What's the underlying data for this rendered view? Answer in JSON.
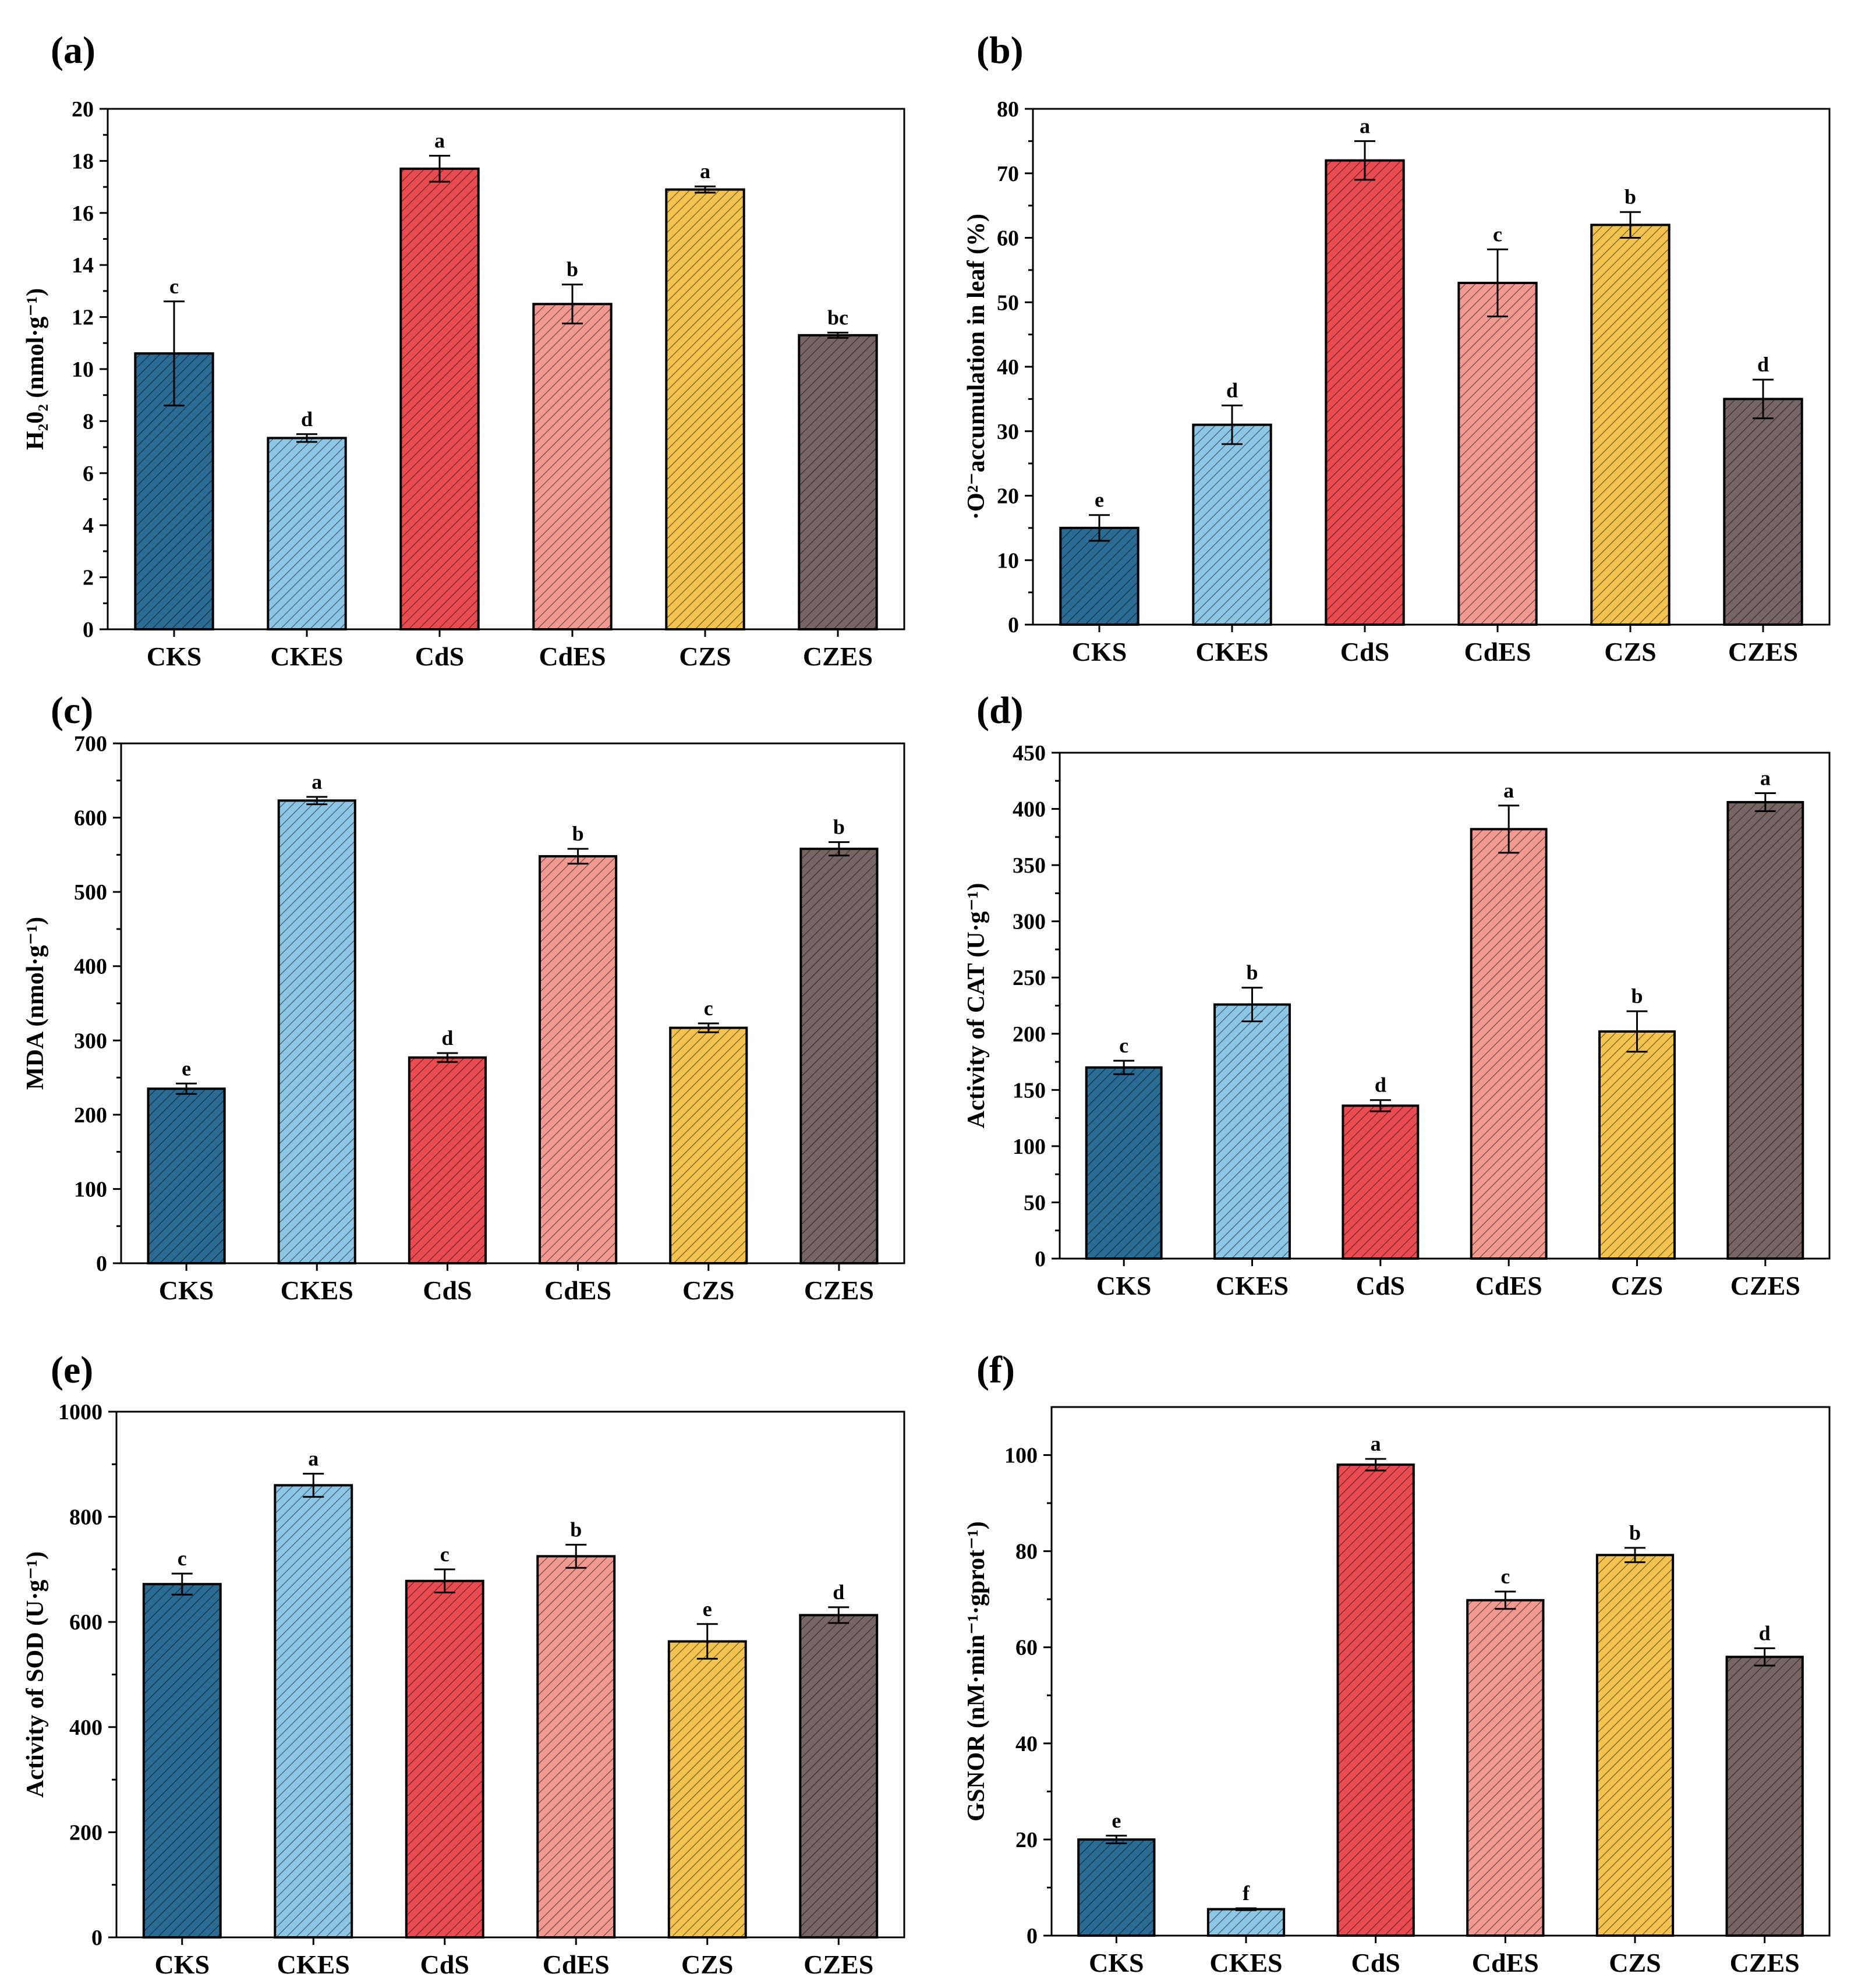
{
  "figure": {
    "series_colors": [
      "#2a6a93",
      "#8ec6e6",
      "#e94b50",
      "#f29a92",
      "#f2c44f",
      "#776464"
    ]
  },
  "chart_data": [
    {
      "type": "bar",
      "panel_label": "(a)",
      "title": "",
      "categories": [
        "CKS",
        "CKES",
        "CdS",
        "CdES",
        "CZS",
        "CZES"
      ],
      "values": [
        10.6,
        7.35,
        17.7,
        12.5,
        16.9,
        11.3
      ],
      "errors": [
        2.0,
        0.15,
        0.5,
        0.75,
        0.12,
        0.1
      ],
      "letters": [
        "c",
        "d",
        "a",
        "b",
        "a",
        "bc"
      ],
      "ylabel": "H₂0₂ (nmol·g⁻¹)",
      "yticks": [
        0,
        2,
        4,
        6,
        8,
        10,
        12,
        14,
        16,
        18,
        20
      ],
      "ylim": [
        0,
        20
      ],
      "grid": false
    },
    {
      "type": "bar",
      "panel_label": "(b)",
      "title": "",
      "categories": [
        "CKS",
        "CKES",
        "CdS",
        "CdES",
        "CZS",
        "CZES"
      ],
      "values": [
        15,
        31,
        72,
        53,
        62,
        35
      ],
      "errors": [
        2.0,
        3.0,
        3.0,
        5.2,
        2.0,
        3.0
      ],
      "letters": [
        "e",
        "d",
        "a",
        "c",
        "b",
        "d"
      ],
      "ylabel": "·O²⁻accumulation in leaf (%)",
      "yticks": [
        0,
        10,
        20,
        30,
        40,
        50,
        60,
        70,
        80
      ],
      "ylim": [
        0,
        80
      ],
      "grid": false
    },
    {
      "type": "bar",
      "panel_label": "(c)",
      "title": "",
      "categories": [
        "CKS",
        "CKES",
        "CdS",
        "CdES",
        "CZS",
        "CZES"
      ],
      "values": [
        235,
        623,
        277,
        548,
        317,
        558
      ],
      "errors": [
        7,
        5,
        6,
        10,
        6,
        9
      ],
      "letters": [
        "e",
        "a",
        "d",
        "b",
        "c",
        "b"
      ],
      "ylabel": "MDA (nmol·g⁻¹)",
      "yticks": [
        0,
        100,
        200,
        300,
        400,
        500,
        600,
        700
      ],
      "ylim": [
        0,
        700
      ],
      "grid": false
    },
    {
      "type": "bar",
      "panel_label": "(d)",
      "title": "",
      "categories": [
        "CKS",
        "CKES",
        "CdS",
        "CdES",
        "CZS",
        "CZES"
      ],
      "values": [
        170,
        226,
        136,
        382,
        202,
        406
      ],
      "errors": [
        6,
        15,
        5,
        21,
        18,
        8
      ],
      "letters": [
        "c",
        "b",
        "d",
        "a",
        "b",
        "a"
      ],
      "ylabel": "Activity of CAT (U·g⁻¹)",
      "yticks": [
        0,
        50,
        100,
        150,
        200,
        250,
        300,
        350,
        400,
        450
      ],
      "ylim": [
        0,
        450
      ],
      "grid": false
    },
    {
      "type": "bar",
      "panel_label": "(e)",
      "title": "",
      "categories": [
        "CKS",
        "CKES",
        "CdS",
        "CdES",
        "CZS",
        "CZES"
      ],
      "values": [
        672,
        860,
        678,
        725,
        563,
        613
      ],
      "errors": [
        20,
        22,
        22,
        22,
        33,
        15
      ],
      "letters": [
        "c",
        "a",
        "c",
        "b",
        "e",
        "d"
      ],
      "ylabel": "Activity of SOD (U·g⁻¹)",
      "yticks": [
        0,
        200,
        400,
        600,
        800,
        1000
      ],
      "ylim": [
        0,
        1000
      ],
      "grid": false
    },
    {
      "type": "bar",
      "panel_label": "(f)",
      "title": "",
      "categories": [
        "CKS",
        "CKES",
        "CdS",
        "CdES",
        "CZS",
        "CZES"
      ],
      "values": [
        20.0,
        5.5,
        98.0,
        69.8,
        79.2,
        58.0
      ],
      "errors": [
        0.8,
        0.2,
        1.2,
        1.8,
        1.5,
        1.8
      ],
      "letters": [
        "e",
        "f",
        "a",
        "c",
        "b",
        "d"
      ],
      "ylabel": "GSNOR (nM·min⁻¹·gprot⁻¹)",
      "yticks": [
        0,
        20,
        40,
        60,
        80,
        100
      ],
      "ylim": [
        0,
        110
      ],
      "grid": false
    }
  ]
}
